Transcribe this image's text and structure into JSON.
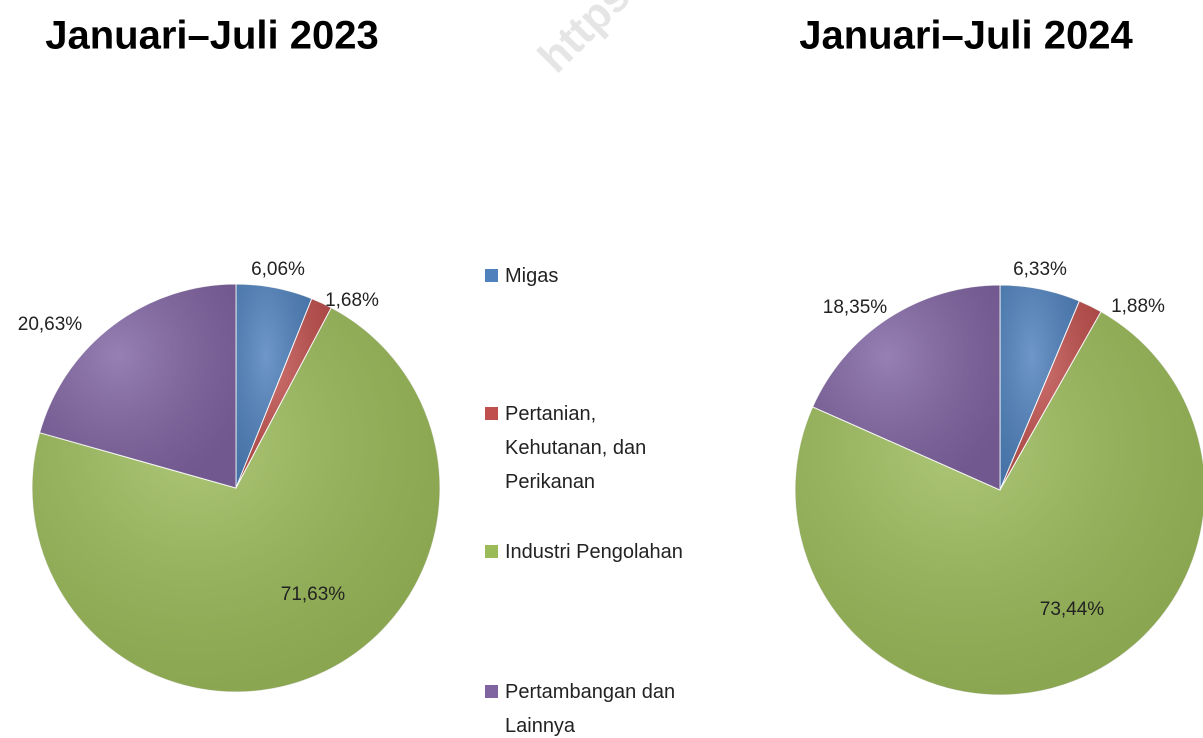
{
  "watermark": "https://www.bps.g",
  "chart_data": [
    {
      "type": "pie",
      "title": "Januari–Juli 2023",
      "categories": [
        "Migas",
        "Pertanian, Kehutanan, dan Perikanan",
        "Industri Pengolahan",
        "Pertambangan dan Lainnya"
      ],
      "colors": [
        "#4f81bd",
        "#c0504d",
        "#9bbb59",
        "#8064a2"
      ],
      "values": [
        6.06,
        1.68,
        71.63,
        20.63
      ],
      "value_labels": [
        "6,06%",
        "1,68%",
        "71,63%",
        "20,63%"
      ]
    },
    {
      "type": "pie",
      "title": "Januari–Juli 2024",
      "values": [
        6.33,
        1.88,
        73.44,
        18.35
      ],
      "value_labels": [
        "6,33%",
        "1,88%",
        "73,44%",
        "18,35%"
      ]
    }
  ]
}
